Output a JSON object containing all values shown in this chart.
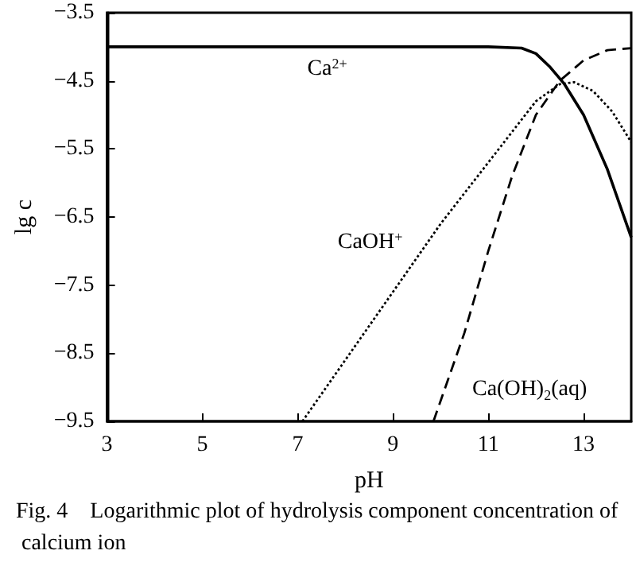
{
  "chart_data": {
    "type": "line",
    "xlabel": "pH",
    "ylabel": "lg c",
    "xlim": [
      3,
      14
    ],
    "xticks": [
      3,
      5,
      7,
      9,
      11,
      13
    ],
    "ylim": [
      -9.5,
      -3.5
    ],
    "yticks": [
      -3.5,
      -4.5,
      -5.5,
      -6.5,
      -7.5,
      -8.5,
      -9.5
    ],
    "grid": false,
    "marker": "none",
    "series": [
      {
        "name": "Ca$^{2+}$",
        "color": "#000000",
        "line_style": "solid",
        "x": [
          3,
          11,
          11.7,
          12.0,
          12.3,
          12.6,
          13,
          13.5,
          14
        ],
        "values": [
          -4.0,
          -4.0,
          -4.02,
          -4.1,
          -4.3,
          -4.55,
          -5.0,
          -5.8,
          -6.8
        ]
      },
      {
        "name": "CaOH$^{+}$",
        "color": "#000000",
        "line_style": "dotted",
        "x": [
          7.1,
          8,
          9,
          10,
          11,
          11.5,
          12,
          12.5,
          12.8,
          13.2,
          13.6,
          14
        ],
        "values": [
          -9.5,
          -8.6,
          -7.6,
          -6.6,
          -5.7,
          -5.25,
          -4.8,
          -4.55,
          -4.52,
          -4.65,
          -4.95,
          -5.4
        ]
      },
      {
        "name": "Ca(OH)$_{2}$(aq)",
        "color": "#000000",
        "line_style": "dashed",
        "x": [
          9.85,
          10.5,
          11,
          11.5,
          12,
          12.5,
          13,
          13.5,
          14
        ],
        "values": [
          -9.5,
          -8.2,
          -7.0,
          -5.9,
          -5.0,
          -4.5,
          -4.2,
          -4.05,
          -4.02
        ]
      }
    ],
    "annotations": [
      "Fig. 4    Logarithmic plot of hydrolysis component concentration of calcium ion"
    ]
  }
}
